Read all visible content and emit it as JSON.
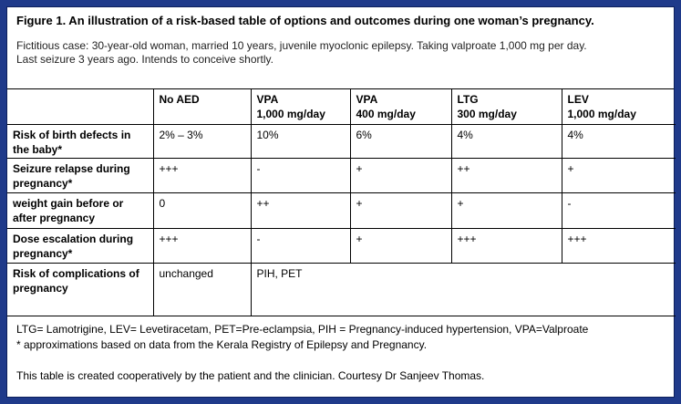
{
  "figure": {
    "title": "Figure 1. An illustration of a risk-based table of options and outcomes during one woman’s pregnancy.",
    "case_line1": "Fictitious case: 30-year-old woman, married 10 years, juvenile myoclonic epilepsy. Taking valproate 1,000 mg per day.",
    "case_line2": "Last seizure 3 years ago. Intends to conceive shortly."
  },
  "table": {
    "columns": [
      {
        "line1": "",
        "line2": ""
      },
      {
        "line1": "No AED",
        "line2": ""
      },
      {
        "line1": "VPA",
        "line2": "1,000 mg/day"
      },
      {
        "line1": "VPA",
        "line2": "400 mg/day"
      },
      {
        "line1": "LTG",
        "line2": "300 mg/day"
      },
      {
        "line1": "LEV",
        "line2": "1,000 mg/day"
      }
    ],
    "rows": [
      {
        "label": "Risk of birth defects in the baby*",
        "values": [
          "2% – 3%",
          "10%",
          "6%",
          "4%",
          "4%"
        ]
      },
      {
        "label": "Seizure relapse during pregnancy*",
        "values": [
          "+++",
          "-",
          "+",
          "++",
          "+"
        ]
      },
      {
        "label": "weight gain before or after pregnancy",
        "values": [
          "0",
          "++",
          "+",
          "+",
          "-"
        ]
      },
      {
        "label": "Dose escalation during pregnancy*",
        "values": [
          "+++",
          "-",
          "+",
          "+++",
          "+++"
        ]
      },
      {
        "label": "Risk of complications of pregnancy",
        "values": [
          "unchanged",
          "PIH, PET",
          "",
          "",
          ""
        ]
      }
    ]
  },
  "footer": {
    "abbreviations": "LTG= Lamotrigine, LEV= Levetiracetam, PET=Pre-eclampsia, PIH = Pregnancy-induced hypertension, VPA=Valproate",
    "note": "* approximations based on data from the Kerala Registry of Epilepsy and Pregnancy.",
    "credit": "This table is created cooperatively by the patient and the clinician. Courtesy Dr Sanjeev Thomas."
  }
}
